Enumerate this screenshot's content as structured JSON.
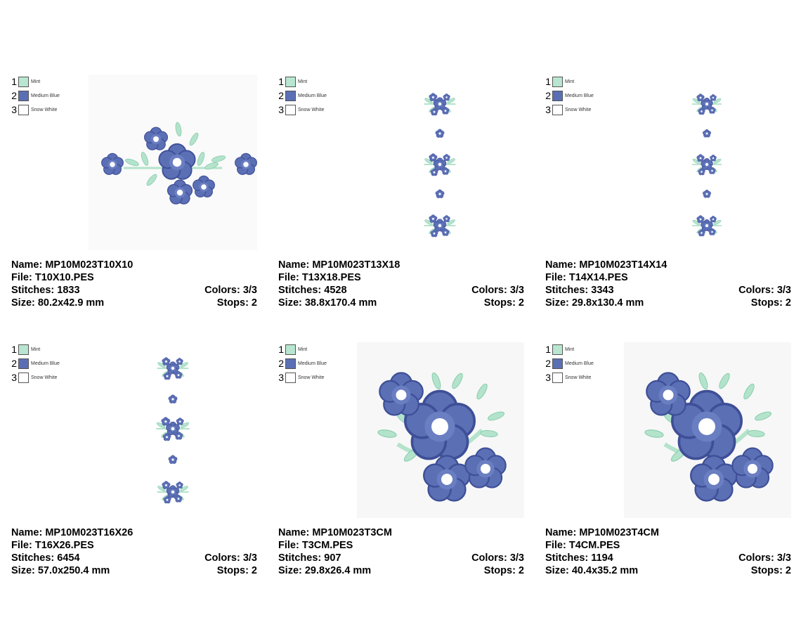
{
  "palette": {
    "mint": "#b8e6d0",
    "medium_blue": "#5b6fb5",
    "snow_white": "#ffffff",
    "leaf": "#b4e3cc",
    "petal": "#5b6fb5",
    "petal_dark": "#3e4f97"
  },
  "legend": [
    {
      "num": "1",
      "name": "Mint",
      "color": "#b8e6d0"
    },
    {
      "num": "2",
      "name": "Medium Blue",
      "color": "#5b6fb5"
    },
    {
      "num": "3",
      "name": "Snow White",
      "color": "#ffffff"
    }
  ],
  "designs": [
    {
      "name": "Name: MP10M023T10X10",
      "file": "File: T10X10.PES",
      "stitches": "Stitches: 1833",
      "colors": "Colors: 3/3",
      "size": "Size: 80.2x42.9 mm",
      "stops": "Stops: 2"
    },
    {
      "name": "Name: MP10M023T13X18",
      "file": "File: T13X18.PES",
      "stitches": "Stitches: 4528",
      "colors": "Colors: 3/3",
      "size": "Size: 38.8x170.4 mm",
      "stops": "Stops: 2"
    },
    {
      "name": "Name: MP10M023T14X14",
      "file": "File: T14X14.PES",
      "stitches": "Stitches: 3343",
      "colors": "Colors: 3/3",
      "size": "Size: 29.8x130.4 mm",
      "stops": "Stops: 2"
    },
    {
      "name": "Name: MP10M023T16X26",
      "file": "File: T16X26.PES",
      "stitches": "Stitches: 6454",
      "colors": "Colors: 3/3",
      "size": "Size: 57.0x250.4 mm",
      "stops": "Stops: 2"
    },
    {
      "name": "Name: MP10M023T3CM",
      "file": "File: T3CM.PES",
      "stitches": "Stitches: 907",
      "colors": "Colors: 3/3",
      "size": "Size: 29.8x26.4 mm",
      "stops": "Stops: 2"
    },
    {
      "name": "Name: MP10M023T4CM",
      "file": "File: T4CM.PES",
      "stitches": "Stitches: 1194",
      "colors": "Colors: 3/3",
      "size": "Size: 40.4x35.2 mm",
      "stops": "Stops: 2"
    }
  ]
}
